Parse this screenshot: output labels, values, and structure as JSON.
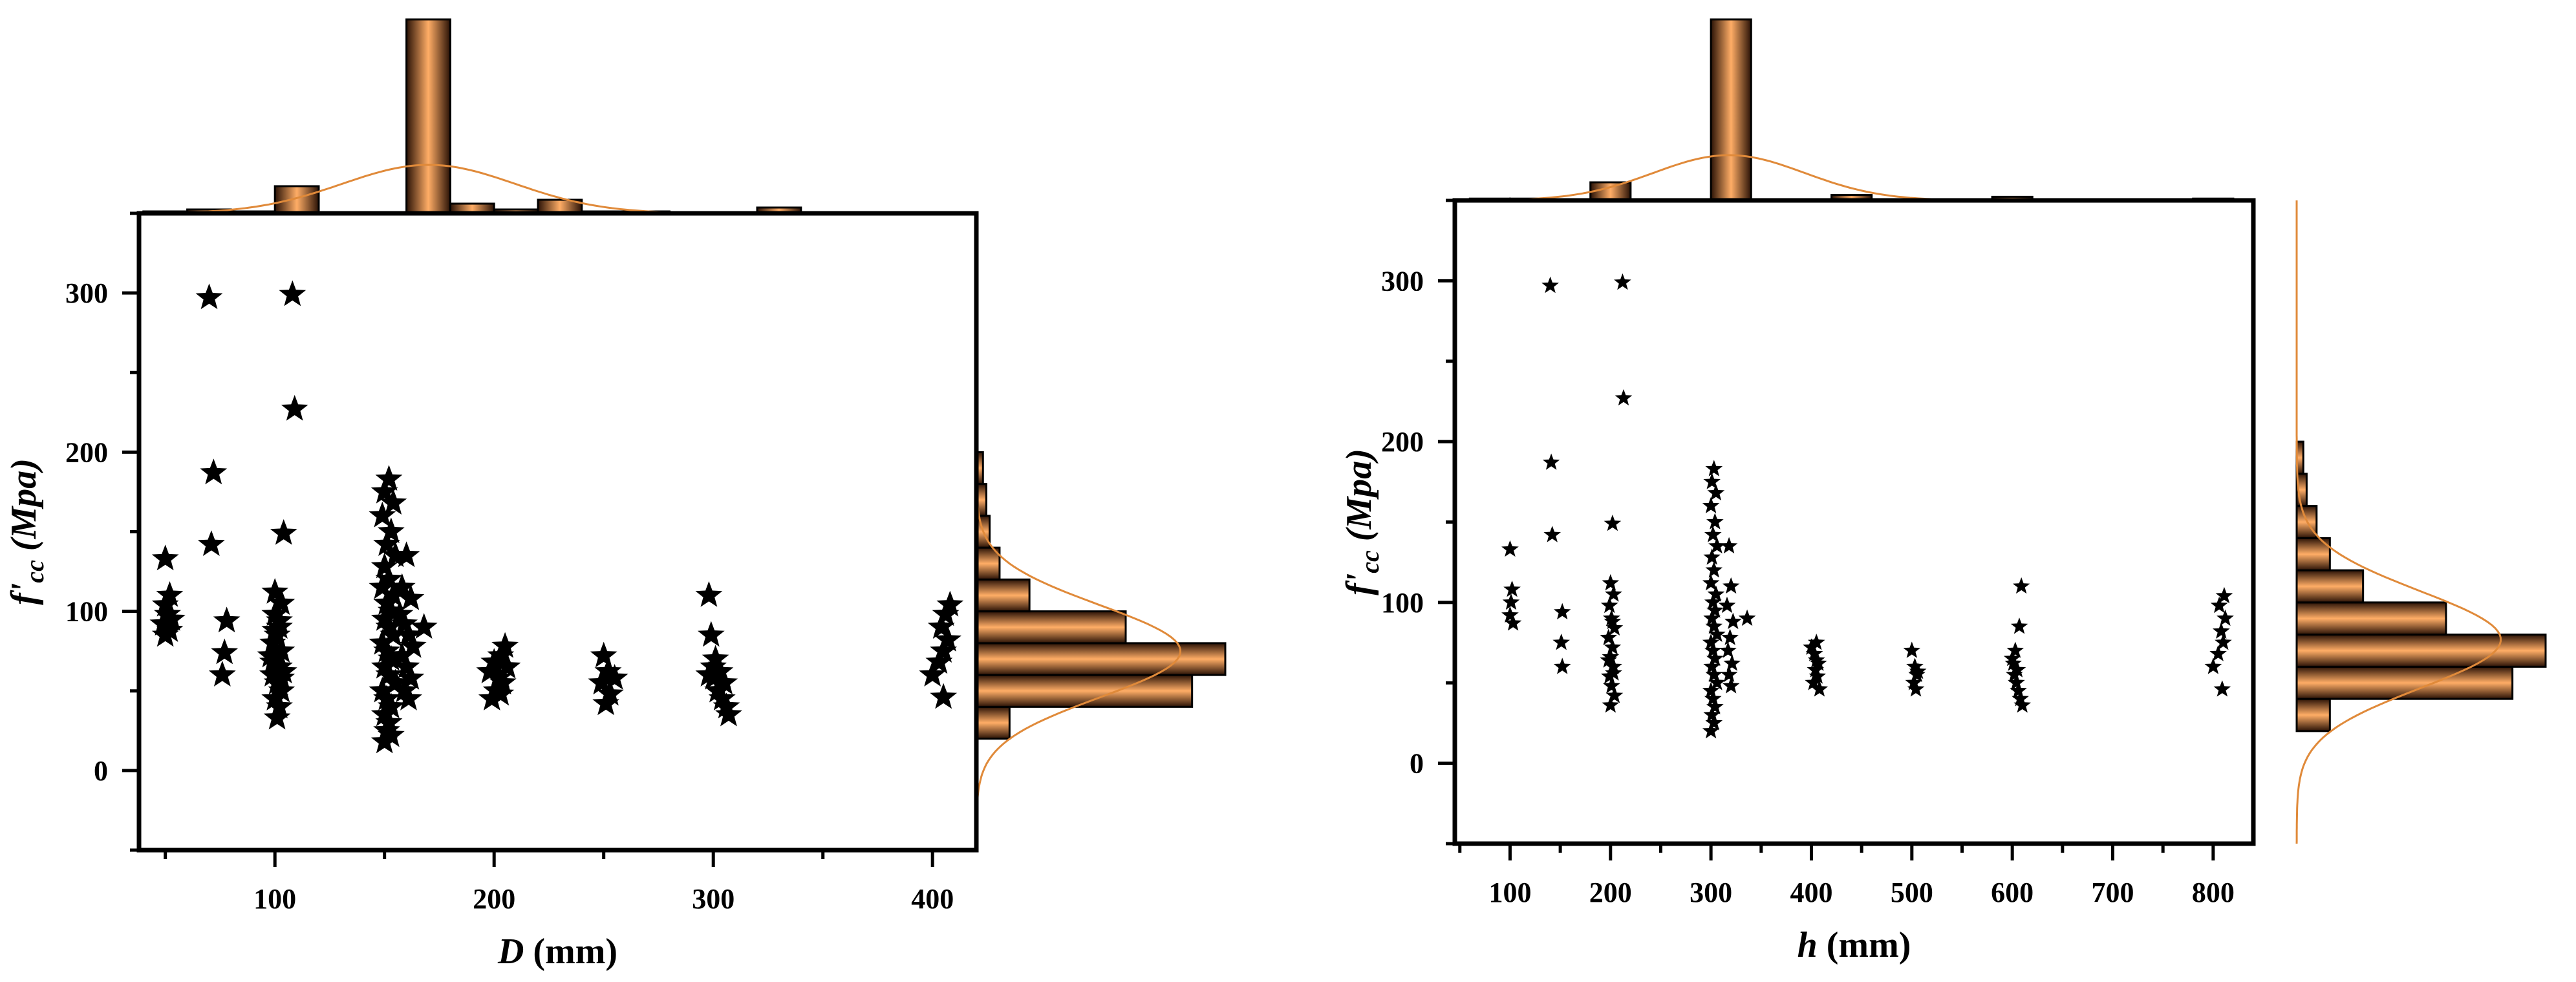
{
  "colors": {
    "bar": "#e07a2e",
    "bar_light": "#ffb070",
    "bar_dark": "#2a1206",
    "curve": "#e08a3a",
    "marker": "#000000"
  },
  "chart_data": [
    {
      "type": "scatter",
      "marker": "star",
      "xlabel": {
        "var": "D",
        "unit": " (mm)"
      },
      "ylabel": {
        "var": "f'",
        "sub": "cc",
        "unit": " (Mpa)"
      },
      "xlim": [
        38,
        420
      ],
      "ylim": [
        -50,
        350
      ],
      "xticks": [
        100,
        200,
        300,
        400
      ],
      "yticks": [
        0,
        100,
        200,
        300
      ],
      "points": [
        [
          50,
          133
        ],
        [
          52,
          110
        ],
        [
          50,
          104
        ],
        [
          51,
          98
        ],
        [
          49,
          92
        ],
        [
          52,
          88
        ],
        [
          50,
          85
        ],
        [
          53,
          95
        ],
        [
          70,
          297
        ],
        [
          72,
          187
        ],
        [
          71,
          142
        ],
        [
          78,
          94
        ],
        [
          77,
          74
        ],
        [
          76,
          60
        ],
        [
          108,
          299
        ],
        [
          109,
          227
        ],
        [
          104,
          149
        ],
        [
          100,
          112
        ],
        [
          103,
          105
        ],
        [
          100,
          98
        ],
        [
          102,
          90
        ],
        [
          101,
          85
        ],
        [
          99,
          80
        ],
        [
          103,
          75
        ],
        [
          100,
          70
        ],
        [
          102,
          65
        ],
        [
          99,
          60
        ],
        [
          101,
          55
        ],
        [
          103,
          50
        ],
        [
          100,
          45
        ],
        [
          102,
          40
        ],
        [
          101,
          33
        ],
        [
          98,
          72
        ],
        [
          104,
          62
        ],
        [
          100,
          88
        ],
        [
          102,
          94
        ],
        [
          99,
          68
        ],
        [
          103,
          58
        ],
        [
          152,
          183
        ],
        [
          150,
          175
        ],
        [
          154,
          168
        ],
        [
          149,
          160
        ],
        [
          153,
          150
        ],
        [
          151,
          142
        ],
        [
          155,
          135
        ],
        [
          150,
          128
        ],
        [
          152,
          120
        ],
        [
          149,
          115
        ],
        [
          154,
          110
        ],
        [
          151,
          105
        ],
        [
          153,
          100
        ],
        [
          150,
          95
        ],
        [
          152,
          90
        ],
        [
          154,
          85
        ],
        [
          149,
          80
        ],
        [
          151,
          75
        ],
        [
          153,
          70
        ],
        [
          150,
          65
        ],
        [
          152,
          60
        ],
        [
          155,
          55
        ],
        [
          149,
          50
        ],
        [
          151,
          45
        ],
        [
          153,
          40
        ],
        [
          150,
          35
        ],
        [
          152,
          30
        ],
        [
          151,
          25
        ],
        [
          150,
          18
        ],
        [
          153,
          22
        ],
        [
          160,
          135
        ],
        [
          158,
          115
        ],
        [
          162,
          108
        ],
        [
          157,
          98
        ],
        [
          159,
          92
        ],
        [
          161,
          85
        ],
        [
          163,
          78
        ],
        [
          158,
          72
        ],
        [
          168,
          90
        ],
        [
          160,
          65
        ],
        [
          162,
          58
        ],
        [
          159,
          50
        ],
        [
          161,
          45
        ],
        [
          200,
          68
        ],
        [
          203,
          72
        ],
        [
          205,
          78
        ],
        [
          198,
          62
        ],
        [
          202,
          58
        ],
        [
          204,
          55
        ],
        [
          201,
          50
        ],
        [
          199,
          45
        ],
        [
          206,
          65
        ],
        [
          203,
          48
        ],
        [
          250,
          72
        ],
        [
          252,
          62
        ],
        [
          249,
          55
        ],
        [
          253,
          48
        ],
        [
          251,
          42
        ],
        [
          255,
          58
        ],
        [
          298,
          110
        ],
        [
          299,
          85
        ],
        [
          301,
          70
        ],
        [
          303,
          62
        ],
        [
          300,
          58
        ],
        [
          305,
          55
        ],
        [
          302,
          50
        ],
        [
          304,
          45
        ],
        [
          306,
          40
        ],
        [
          307,
          35
        ],
        [
          300,
          65
        ],
        [
          298,
          60
        ],
        [
          400,
          60
        ],
        [
          403,
          68
        ],
        [
          405,
          75
        ],
        [
          407,
          82
        ],
        [
          404,
          90
        ],
        [
          406,
          98
        ],
        [
          408,
          104
        ],
        [
          405,
          46
        ]
      ],
      "hist_x": {
        "edges": [
          40,
          60,
          80,
          100,
          120,
          140,
          160,
          180,
          200,
          220,
          240,
          260,
          280,
          300,
          320,
          340,
          360,
          380,
          400,
          420
        ],
        "counts": [
          1,
          2,
          1,
          14,
          0,
          0,
          100,
          5,
          2,
          7,
          1,
          1,
          0,
          0,
          3,
          0,
          0,
          0,
          0
        ]
      },
      "hist_y": {
        "edges": [
          20,
          40,
          60,
          80,
          100,
          120,
          140,
          160,
          180,
          200
        ],
        "counts": [
          10,
          65,
          75,
          45,
          16,
          7,
          4,
          3,
          2
        ]
      }
    },
    {
      "type": "scatter",
      "marker": "star",
      "xlabel": {
        "var": "h",
        "unit": " (mm)"
      },
      "ylabel": {
        "var": "f'",
        "sub": "cc",
        "unit": " (Mpa)"
      },
      "xlim": [
        45,
        840
      ],
      "ylim": [
        -50,
        350
      ],
      "xticks": [
        100,
        200,
        300,
        400,
        500,
        600,
        700,
        800
      ],
      "yticks": [
        0,
        100,
        200,
        300
      ],
      "points": [
        [
          100,
          133
        ],
        [
          102,
          108
        ],
        [
          101,
          100
        ],
        [
          100,
          92
        ],
        [
          103,
          87
        ],
        [
          140,
          297
        ],
        [
          141,
          187
        ],
        [
          142,
          142
        ],
        [
          152,
          94
        ],
        [
          151,
          75
        ],
        [
          152,
          60
        ],
        [
          212,
          299
        ],
        [
          213,
          227
        ],
        [
          202,
          149
        ],
        [
          200,
          112
        ],
        [
          203,
          105
        ],
        [
          199,
          98
        ],
        [
          201,
          90
        ],
        [
          204,
          84
        ],
        [
          198,
          78
        ],
        [
          202,
          72
        ],
        [
          200,
          66
        ],
        [
          203,
          60
        ],
        [
          199,
          54
        ],
        [
          201,
          48
        ],
        [
          204,
          42
        ],
        [
          200,
          36
        ],
        [
          202,
          88
        ],
        [
          198,
          64
        ],
        [
          203,
          56
        ],
        [
          303,
          183
        ],
        [
          301,
          175
        ],
        [
          305,
          168
        ],
        [
          300,
          160
        ],
        [
          304,
          150
        ],
        [
          302,
          142
        ],
        [
          306,
          135
        ],
        [
          301,
          128
        ],
        [
          303,
          120
        ],
        [
          300,
          112
        ],
        [
          305,
          105
        ],
        [
          302,
          100
        ],
        [
          304,
          95
        ],
        [
          301,
          90
        ],
        [
          303,
          85
        ],
        [
          306,
          80
        ],
        [
          300,
          75
        ],
        [
          302,
          70
        ],
        [
          304,
          65
        ],
        [
          301,
          60
        ],
        [
          303,
          55
        ],
        [
          306,
          50
        ],
        [
          300,
          45
        ],
        [
          302,
          40
        ],
        [
          304,
          35
        ],
        [
          301,
          30
        ],
        [
          303,
          25
        ],
        [
          300,
          20
        ],
        [
          318,
          135
        ],
        [
          320,
          110
        ],
        [
          316,
          98
        ],
        [
          322,
          88
        ],
        [
          319,
          78
        ],
        [
          317,
          70
        ],
        [
          321,
          62
        ],
        [
          318,
          55
        ],
        [
          320,
          48
        ],
        [
          336,
          90
        ],
        [
          400,
          72
        ],
        [
          403,
          68
        ],
        [
          405,
          75
        ],
        [
          407,
          62
        ],
        [
          404,
          58
        ],
        [
          406,
          54
        ],
        [
          402,
          50
        ],
        [
          408,
          46
        ],
        [
          405,
          64
        ],
        [
          500,
          70
        ],
        [
          503,
          60
        ],
        [
          505,
          55
        ],
        [
          502,
          50
        ],
        [
          504,
          46
        ],
        [
          506,
          57
        ],
        [
          600,
          65
        ],
        [
          603,
          70
        ],
        [
          605,
          58
        ],
        [
          602,
          55
        ],
        [
          604,
          50
        ],
        [
          606,
          45
        ],
        [
          608,
          40
        ],
        [
          610,
          36
        ],
        [
          609,
          110
        ],
        [
          607,
          85
        ],
        [
          601,
          62
        ],
        [
          800,
          60
        ],
        [
          805,
          68
        ],
        [
          810,
          75
        ],
        [
          808,
          82
        ],
        [
          812,
          90
        ],
        [
          806,
          98
        ],
        [
          811,
          104
        ],
        [
          809,
          46
        ]
      ],
      "hist_x": {
        "edges": [
          60,
          100,
          140,
          180,
          220,
          260,
          300,
          340,
          380,
          420,
          460,
          500,
          540,
          580,
          620,
          660,
          700,
          740,
          780,
          820
        ],
        "counts": [
          1,
          1,
          0,
          10,
          0,
          0,
          100,
          0,
          0,
          3,
          0,
          0,
          0,
          2,
          0,
          0,
          0,
          0,
          1
        ]
      },
      "hist_y": {
        "edges": [
          20,
          40,
          60,
          80,
          100,
          120,
          140,
          160,
          180,
          200
        ],
        "counts": [
          10,
          65,
          75,
          45,
          20,
          10,
          6,
          3,
          2
        ]
      }
    }
  ]
}
